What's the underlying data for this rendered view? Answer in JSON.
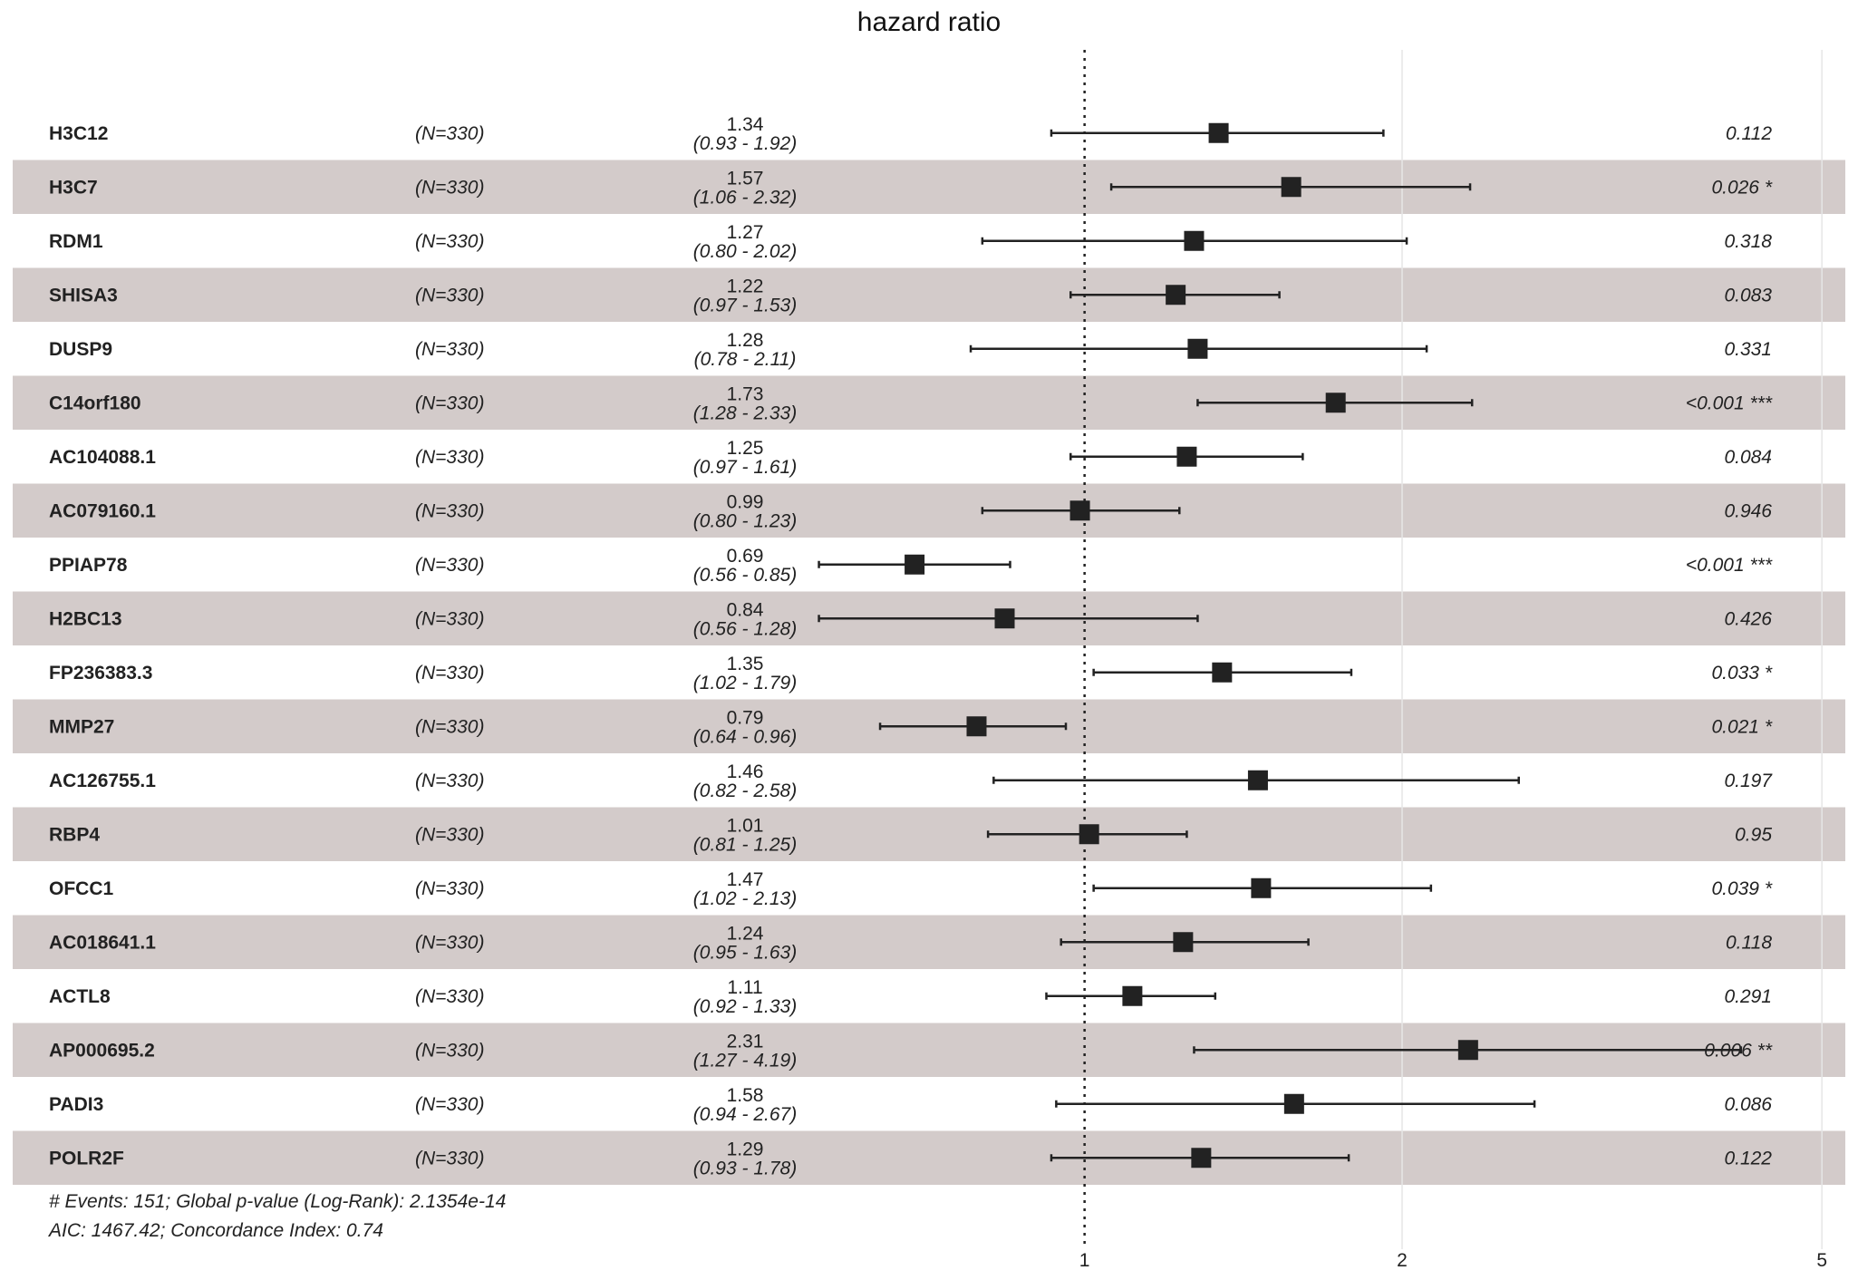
{
  "chart_data": {
    "type": "forest",
    "title": "hazard ratio",
    "x_scale": "log",
    "xlim": [
      0.62,
      5.2
    ],
    "reference_line": 1,
    "x_ticks": [
      {
        "value": 1,
        "label": "1"
      },
      {
        "value": 2,
        "label": "2"
      },
      {
        "value": 5,
        "label": "5"
      }
    ],
    "rows": [
      {
        "gene": "H3C12",
        "n": "(N=330)",
        "hr_text": "1.34",
        "ci_text": "(0.93 - 1.92)",
        "hr": 1.34,
        "lo": 0.93,
        "hi": 1.92,
        "p_text": "0.112"
      },
      {
        "gene": "H3C7",
        "n": "(N=330)",
        "hr_text": "1.57",
        "ci_text": "(1.06 - 2.32)",
        "hr": 1.57,
        "lo": 1.06,
        "hi": 2.32,
        "p_text": "0.026 *"
      },
      {
        "gene": "RDM1",
        "n": "(N=330)",
        "hr_text": "1.27",
        "ci_text": "(0.80 - 2.02)",
        "hr": 1.27,
        "lo": 0.8,
        "hi": 2.02,
        "p_text": "0.318"
      },
      {
        "gene": "SHISA3",
        "n": "(N=330)",
        "hr_text": "1.22",
        "ci_text": "(0.97 - 1.53)",
        "hr": 1.22,
        "lo": 0.97,
        "hi": 1.53,
        "p_text": "0.083"
      },
      {
        "gene": "DUSP9",
        "n": "(N=330)",
        "hr_text": "1.28",
        "ci_text": "(0.78 - 2.11)",
        "hr": 1.28,
        "lo": 0.78,
        "hi": 2.11,
        "p_text": "0.331"
      },
      {
        "gene": "C14orf180",
        "n": "(N=330)",
        "hr_text": "1.73",
        "ci_text": "(1.28 - 2.33)",
        "hr": 1.73,
        "lo": 1.28,
        "hi": 2.33,
        "p_text": "<0.001 ***"
      },
      {
        "gene": "AC104088.1",
        "n": "(N=330)",
        "hr_text": "1.25",
        "ci_text": "(0.97 - 1.61)",
        "hr": 1.25,
        "lo": 0.97,
        "hi": 1.61,
        "p_text": "0.084"
      },
      {
        "gene": "AC079160.1",
        "n": "(N=330)",
        "hr_text": "0.99",
        "ci_text": "(0.80 - 1.23)",
        "hr": 0.99,
        "lo": 0.8,
        "hi": 1.23,
        "p_text": "0.946"
      },
      {
        "gene": "PPIAP78",
        "n": "(N=330)",
        "hr_text": "0.69",
        "ci_text": "(0.56 - 0.85)",
        "hr": 0.69,
        "lo": 0.56,
        "hi": 0.85,
        "p_text": "<0.001 ***"
      },
      {
        "gene": "H2BC13",
        "n": "(N=330)",
        "hr_text": "0.84",
        "ci_text": "(0.56 - 1.28)",
        "hr": 0.84,
        "lo": 0.56,
        "hi": 1.28,
        "p_text": "0.426"
      },
      {
        "gene": "FP236383.3",
        "n": "(N=330)",
        "hr_text": "1.35",
        "ci_text": "(1.02 - 1.79)",
        "hr": 1.35,
        "lo": 1.02,
        "hi": 1.79,
        "p_text": "0.033 *"
      },
      {
        "gene": "MMP27",
        "n": "(N=330)",
        "hr_text": "0.79",
        "ci_text": "(0.64 - 0.96)",
        "hr": 0.79,
        "lo": 0.64,
        "hi": 0.96,
        "p_text": "0.021 *"
      },
      {
        "gene": "AC126755.1",
        "n": "(N=330)",
        "hr_text": "1.46",
        "ci_text": "(0.82 - 2.58)",
        "hr": 1.46,
        "lo": 0.82,
        "hi": 2.58,
        "p_text": "0.197"
      },
      {
        "gene": "RBP4",
        "n": "(N=330)",
        "hr_text": "1.01",
        "ci_text": "(0.81 - 1.25)",
        "hr": 1.01,
        "lo": 0.81,
        "hi": 1.25,
        "p_text": "0.95"
      },
      {
        "gene": "OFCC1",
        "n": "(N=330)",
        "hr_text": "1.47",
        "ci_text": "(1.02 - 2.13)",
        "hr": 1.47,
        "lo": 1.02,
        "hi": 2.13,
        "p_text": "0.039 *"
      },
      {
        "gene": "AC018641.1",
        "n": "(N=330)",
        "hr_text": "1.24",
        "ci_text": "(0.95 - 1.63)",
        "hr": 1.24,
        "lo": 0.95,
        "hi": 1.63,
        "p_text": "0.118"
      },
      {
        "gene": "ACTL8",
        "n": "(N=330)",
        "hr_text": "1.11",
        "ci_text": "(0.92 - 1.33)",
        "hr": 1.11,
        "lo": 0.92,
        "hi": 1.33,
        "p_text": "0.291"
      },
      {
        "gene": "AP000695.2",
        "n": "(N=330)",
        "hr_text": "2.31",
        "ci_text": "(1.27 - 4.19)",
        "hr": 2.31,
        "lo": 1.27,
        "hi": 4.19,
        "p_text": "0.006 **"
      },
      {
        "gene": "PADI3",
        "n": "(N=330)",
        "hr_text": "1.58",
        "ci_text": "(0.94 - 2.67)",
        "hr": 1.58,
        "lo": 0.94,
        "hi": 2.67,
        "p_text": "0.086"
      },
      {
        "gene": "POLR2F",
        "n": "(N=330)",
        "hr_text": "1.29",
        "ci_text": "(0.93 - 1.78)",
        "hr": 1.29,
        "lo": 0.93,
        "hi": 1.78,
        "p_text": "0.122"
      }
    ],
    "footnotes": [
      "# Events: 151; Global p-value (Log-Rank): 2.1354e-14",
      "AIC: 1467.42; Concordance Index: 0.74"
    ],
    "grid": "vertical at ticks",
    "colors": {
      "band": "#d3cbca",
      "marker": "#222222",
      "gridline": "#e6e6e6",
      "text": "#222222"
    }
  }
}
